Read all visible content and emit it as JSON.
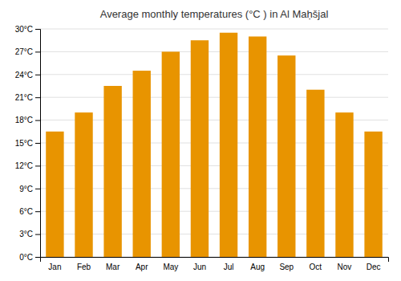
{
  "chart_data": {
    "type": "bar",
    "title": "Average monthly temperatures (°C ) in Al Maḥšjal",
    "categories": [
      "Jan",
      "Feb",
      "Mar",
      "Apr",
      "May",
      "Jun",
      "Jul",
      "Aug",
      "Sep",
      "Oct",
      "Nov",
      "Dec"
    ],
    "values": [
      16.5,
      19.0,
      22.5,
      24.5,
      27.0,
      28.5,
      29.5,
      29.0,
      26.5,
      22.0,
      19.0,
      16.5
    ],
    "color": "#E89400",
    "ylim": [
      0,
      30
    ],
    "yticks": [
      {
        "value": 0,
        "label": "0°C"
      },
      {
        "value": 3,
        "label": "3°C"
      },
      {
        "value": 6,
        "label": "6°C"
      },
      {
        "value": 9,
        "label": "9°C"
      },
      {
        "value": 12,
        "label": "12°C"
      },
      {
        "value": 15,
        "label": "15°C"
      },
      {
        "value": 18,
        "label": "18°C"
      },
      {
        "value": 21,
        "label": "21°C"
      },
      {
        "value": 24,
        "label": "24°C"
      },
      {
        "value": 27,
        "label": "27°C"
      },
      {
        "value": 30,
        "label": "30°C"
      }
    ],
    "grid": true
  }
}
